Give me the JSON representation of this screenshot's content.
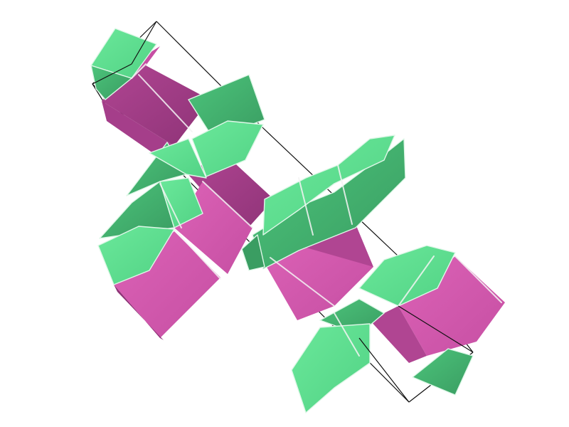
{
  "scene": {
    "description_free": true,
    "colors": {
      "background": "#ffffff",
      "green_light": "#5fe08f",
      "green_mid": "#4cc47b",
      "green_dark": "#3a9d62",
      "magenta_light": "#d65ab0",
      "magenta_mid": "#b9479a",
      "magenta_dark": "#8e3377",
      "edge_highlight": "#f2f2f2",
      "outline": "#111111"
    },
    "icons": [
      "rhombohedron-cell-icon"
    ]
  }
}
